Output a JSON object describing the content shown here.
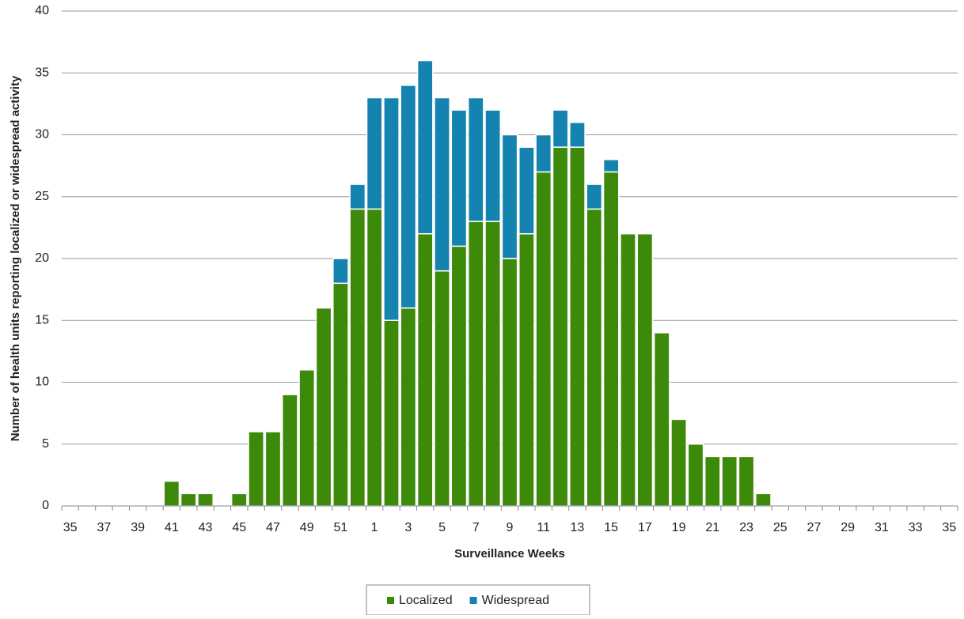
{
  "chart_data": {
    "type": "stacked-bar",
    "y_label": "Number of health units reporting localized or widespread activity",
    "x_label": "Surveillance Weeks",
    "categories": [
      "35",
      null,
      "37",
      null,
      "39",
      null,
      "41",
      null,
      "43",
      null,
      "45",
      null,
      "47",
      null,
      "49",
      null,
      "51",
      null,
      "1",
      null,
      "3",
      null,
      "5",
      null,
      "7",
      null,
      "9",
      null,
      "11",
      null,
      "13",
      null,
      "15",
      null,
      "17",
      null,
      "19",
      null,
      "21",
      null,
      "23",
      null,
      "25",
      null,
      "27",
      null,
      "29",
      null,
      "31",
      null,
      "33",
      null,
      "35"
    ],
    "series": [
      {
        "name": "Localized",
        "color": "#3d8a0b",
        "values": [
          0,
          0,
          0,
          0,
          0,
          0,
          2,
          1,
          1,
          0,
          1,
          6,
          6,
          9,
          11,
          16,
          18,
          24,
          24,
          15,
          16,
          22,
          19,
          21,
          23,
          23,
          20,
          22,
          27,
          29,
          29,
          24,
          27,
          22,
          22,
          14,
          7,
          5,
          4,
          4,
          4,
          1,
          0,
          0,
          0,
          0,
          0,
          0,
          0,
          0,
          0,
          0,
          0
        ]
      },
      {
        "name": "Widespread",
        "color": "#1583b0",
        "values": [
          0,
          0,
          0,
          0,
          0,
          0,
          0,
          0,
          0,
          0,
          0,
          0,
          0,
          0,
          0,
          0,
          2,
          2,
          9,
          18,
          18,
          14,
          14,
          11,
          10,
          9,
          10,
          7,
          3,
          3,
          2,
          2,
          1,
          0,
          0,
          0,
          0,
          0,
          0,
          0,
          0,
          0,
          0,
          0,
          0,
          0,
          0,
          0,
          0,
          0,
          0,
          0,
          0
        ]
      }
    ],
    "ylim": [
      0,
      40
    ],
    "yticks": [
      0,
      5,
      10,
      15,
      20,
      25,
      30,
      35,
      40
    ],
    "grid": true
  }
}
